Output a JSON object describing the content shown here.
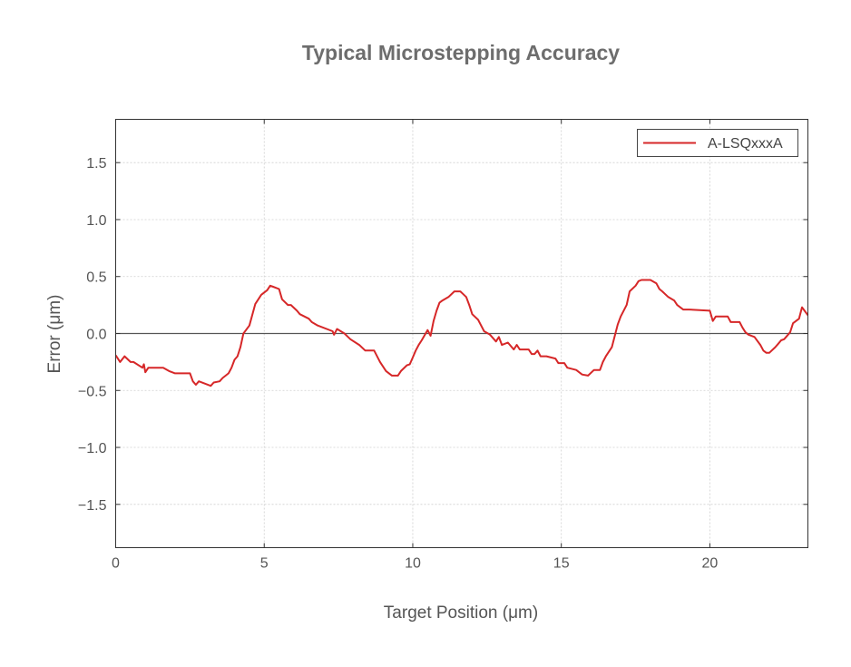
{
  "chart_data": {
    "type": "line",
    "title": "Typical Microstepping Accuracy",
    "xlabel": "Target Position (μm)",
    "ylabel": "Error (μm)",
    "xlim": [
      0,
      23.3
    ],
    "ylim": [
      -1.88,
      1.88
    ],
    "xticks": [
      0,
      5,
      10,
      15,
      20
    ],
    "yticks": [
      1.5,
      1.0,
      0.5,
      0.0,
      -0.5,
      -1.0,
      -1.5
    ],
    "ytick_labels": [
      "1.5",
      "1.0",
      "0.5",
      "0.0",
      "−0.5",
      "−1.0",
      "−1.5"
    ],
    "grid": true,
    "zero_line": true,
    "legend": {
      "position": "top-right"
    },
    "series": [
      {
        "name": "A-LSQxxxA",
        "color": "#d62728",
        "x": [
          0.0,
          0.15,
          0.3,
          0.5,
          0.6,
          0.9,
          0.95,
          1.0,
          1.1,
          1.2,
          1.3,
          1.4,
          1.5,
          1.6,
          1.8,
          2.0,
          2.2,
          2.5,
          2.6,
          2.7,
          2.8,
          3.2,
          3.3,
          3.5,
          3.6,
          3.8,
          3.9,
          4.0,
          4.1,
          4.2,
          4.3,
          4.5,
          4.7,
          4.9,
          5.1,
          5.2,
          5.3,
          5.5,
          5.6,
          5.8,
          5.9,
          6.1,
          6.2,
          6.5,
          6.6,
          6.8,
          7.3,
          7.35,
          7.45,
          7.7,
          7.9,
          8.2,
          8.4,
          8.7,
          8.9,
          9.1,
          9.3,
          9.4,
          9.5,
          9.6,
          9.8,
          9.9,
          10.0,
          10.1,
          10.2,
          10.3,
          10.5,
          10.6,
          10.7,
          10.8,
          10.9,
          11.0,
          11.2,
          11.4,
          11.5,
          11.6,
          11.8,
          11.9,
          12.0,
          12.2,
          12.3,
          12.4,
          12.6,
          12.8,
          12.9,
          13.0,
          13.2,
          13.4,
          13.5,
          13.6,
          13.7,
          13.9,
          14.0,
          14.1,
          14.2,
          14.3,
          14.4,
          14.5,
          14.8,
          14.9,
          15.0,
          15.1,
          15.2,
          15.5,
          15.7,
          15.9,
          16.1,
          16.3,
          16.4,
          16.5,
          16.7,
          16.9,
          17.0,
          17.2,
          17.3,
          17.5,
          17.6,
          17.7,
          18.0,
          18.2,
          18.3,
          18.4,
          18.6,
          18.8,
          18.9,
          19.1,
          19.3,
          20.0,
          20.1,
          20.2,
          20.6,
          20.7,
          21.0,
          21.1,
          21.2,
          21.3,
          21.5,
          21.7,
          21.8,
          21.9,
          22.0,
          22.2,
          22.3,
          22.4,
          22.5,
          22.7,
          22.8,
          23.0,
          23.1,
          23.3
        ],
        "y": [
          -0.19,
          -0.25,
          -0.2,
          -0.25,
          -0.25,
          -0.3,
          -0.27,
          -0.34,
          -0.3,
          -0.3,
          -0.3,
          -0.3,
          -0.3,
          -0.3,
          -0.33,
          -0.35,
          -0.35,
          -0.35,
          -0.42,
          -0.45,
          -0.42,
          -0.46,
          -0.43,
          -0.42,
          -0.39,
          -0.35,
          -0.3,
          -0.23,
          -0.2,
          -0.12,
          0.0,
          0.07,
          0.26,
          0.34,
          0.38,
          0.42,
          0.41,
          0.39,
          0.3,
          0.25,
          0.25,
          0.2,
          0.17,
          0.13,
          0.1,
          0.07,
          0.02,
          -0.01,
          0.04,
          0.0,
          -0.05,
          -0.1,
          -0.15,
          -0.15,
          -0.25,
          -0.33,
          -0.37,
          -0.37,
          -0.37,
          -0.33,
          -0.28,
          -0.27,
          -0.21,
          -0.15,
          -0.1,
          -0.06,
          0.03,
          -0.02,
          0.11,
          0.2,
          0.27,
          0.29,
          0.32,
          0.37,
          0.37,
          0.37,
          0.32,
          0.25,
          0.17,
          0.12,
          0.07,
          0.02,
          -0.01,
          -0.07,
          -0.03,
          -0.1,
          -0.08,
          -0.14,
          -0.1,
          -0.14,
          -0.14,
          -0.14,
          -0.18,
          -0.18,
          -0.15,
          -0.2,
          -0.2,
          -0.2,
          -0.22,
          -0.26,
          -0.26,
          -0.26,
          -0.3,
          -0.32,
          -0.36,
          -0.37,
          -0.32,
          -0.32,
          -0.25,
          -0.2,
          -0.12,
          0.08,
          0.15,
          0.25,
          0.37,
          0.42,
          0.46,
          0.47,
          0.47,
          0.44,
          0.39,
          0.37,
          0.32,
          0.29,
          0.25,
          0.21,
          0.21,
          0.2,
          0.11,
          0.15,
          0.15,
          0.1,
          0.1,
          0.05,
          0.01,
          -0.01,
          -0.03,
          -0.1,
          -0.15,
          -0.17,
          -0.17,
          -0.12,
          -0.09,
          -0.06,
          -0.05,
          0.01,
          0.09,
          0.13,
          0.23,
          0.16
        ]
      }
    ]
  }
}
